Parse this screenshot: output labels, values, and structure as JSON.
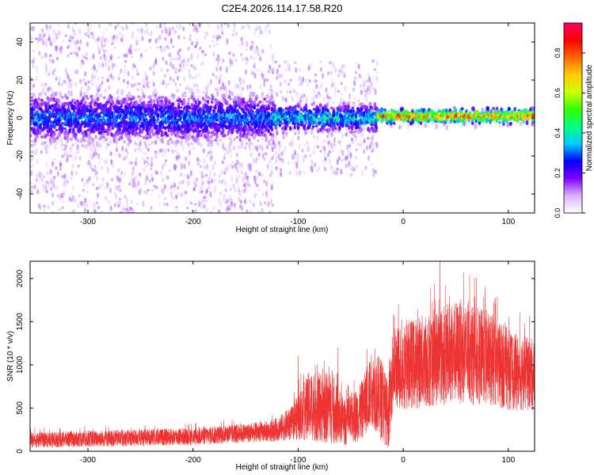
{
  "figure": {
    "title": "C2E4.2026.114.17.58.R20"
  },
  "chart_data": [
    {
      "type": "heatmap",
      "title": "C2E4.2026.114.17.58.R20",
      "xlabel": "Height of straight line (km)",
      "ylabel": "Frequency (Hz)",
      "xlim": [
        -355,
        125
      ],
      "ylim": [
        -50,
        50
      ],
      "xticks": [
        -300,
        -200,
        -100,
        0,
        100
      ],
      "yticks": [
        -40,
        -20,
        0,
        20,
        40
      ],
      "colorbar": {
        "label": "Normalized spectral amplitude",
        "range": [
          0,
          0.95
        ],
        "ticks": [
          "0.0",
          "0.2",
          "0.4",
          "0.6",
          "0.8"
        ],
        "colormap": [
          "#ffffff",
          "#d9b3ff",
          "#8000ff",
          "#0000ff",
          "#00ccff",
          "#00ff80",
          "#33ff00",
          "#ccff00",
          "#ffcc00",
          "#ff6600",
          "#ff0000",
          "#ff0066"
        ]
      },
      "signal": [
        {
          "x_from": -355,
          "x_to": -125,
          "center_hz": 0,
          "core_halfwidth_hz": 10,
          "max_amplitude": 0.38,
          "scatter_halfwidth_hz": 50
        },
        {
          "x_from": -125,
          "x_to": -25,
          "center_hz": 0,
          "core_halfwidth_hz": 6,
          "max_amplitude": 0.48,
          "scatter_halfwidth_hz": 30
        },
        {
          "x_from": -25,
          "x_to": 125,
          "center_hz": 1,
          "core_halfwidth_hz": 3,
          "max_amplitude": 0.95,
          "scatter_halfwidth_hz": 5
        }
      ]
    },
    {
      "type": "line",
      "xlabel": "Height of straight line (km)",
      "ylabel": "SNR (10 * v/v)",
      "xlim": [
        -355,
        125
      ],
      "ylim": [
        0,
        2200
      ],
      "xticks": [
        -300,
        -200,
        -100,
        0,
        100
      ],
      "yticks": [
        0,
        500,
        1000,
        1500,
        2000
      ],
      "color": "#ee3333",
      "envelope": [
        {
          "x": -355,
          "mean": 130,
          "spread": 90
        },
        {
          "x": -200,
          "mean": 170,
          "spread": 100
        },
        {
          "x": -125,
          "mean": 230,
          "spread": 120
        },
        {
          "x": -105,
          "mean": 330,
          "spread": 200
        },
        {
          "x": -90,
          "mean": 520,
          "spread": 400
        },
        {
          "x": -70,
          "mean": 500,
          "spread": 420
        },
        {
          "x": -55,
          "mean": 330,
          "spread": 260
        },
        {
          "x": -40,
          "mean": 460,
          "spread": 340
        },
        {
          "x": -30,
          "mean": 720,
          "spread": 420
        },
        {
          "x": -20,
          "mean": 600,
          "spread": 500
        },
        {
          "x": -14,
          "mean": 400,
          "spread": 360
        },
        {
          "x": -10,
          "mean": 950,
          "spread": 480
        },
        {
          "x": 20,
          "mean": 1050,
          "spread": 550
        },
        {
          "x": 50,
          "mean": 1150,
          "spread": 600
        },
        {
          "x": 80,
          "mean": 1080,
          "spread": 560
        },
        {
          "x": 105,
          "mean": 920,
          "spread": 450
        },
        {
          "x": 125,
          "mean": 880,
          "spread": 420
        }
      ],
      "peaks": [
        {
          "x": -100,
          "y": 1100
        },
        {
          "x": -62,
          "y": 1200
        },
        {
          "x": -27,
          "y": 1180
        },
        {
          "x": 35,
          "y": 2200
        },
        {
          "x": 78,
          "y": 1900
        }
      ]
    }
  ]
}
